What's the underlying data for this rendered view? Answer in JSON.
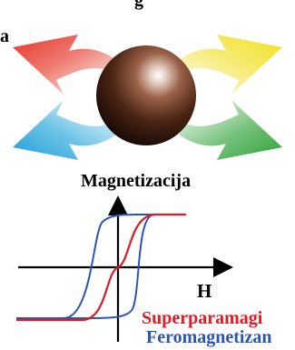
{
  "labels": {
    "top": "g",
    "left": "a",
    "magnetization_axis": "Magnetizacija",
    "field_axis": "H"
  },
  "legend": [
    {
      "name": "Superparamagi",
      "color": "#e01b24"
    },
    {
      "name": "Feromagnetizan",
      "color": "#2b55b5"
    }
  ],
  "arrow_colors": {
    "top_left": "#e8342a",
    "top_right": "#f2e21f",
    "bottom_left": "#1e9fd8",
    "bottom_right": "#2fa23a"
  },
  "sphere_color": "#5a2e1c",
  "curve_colors": {
    "superparamagnetic": "#e01b24",
    "ferromagnetic": "#2b55b5"
  }
}
